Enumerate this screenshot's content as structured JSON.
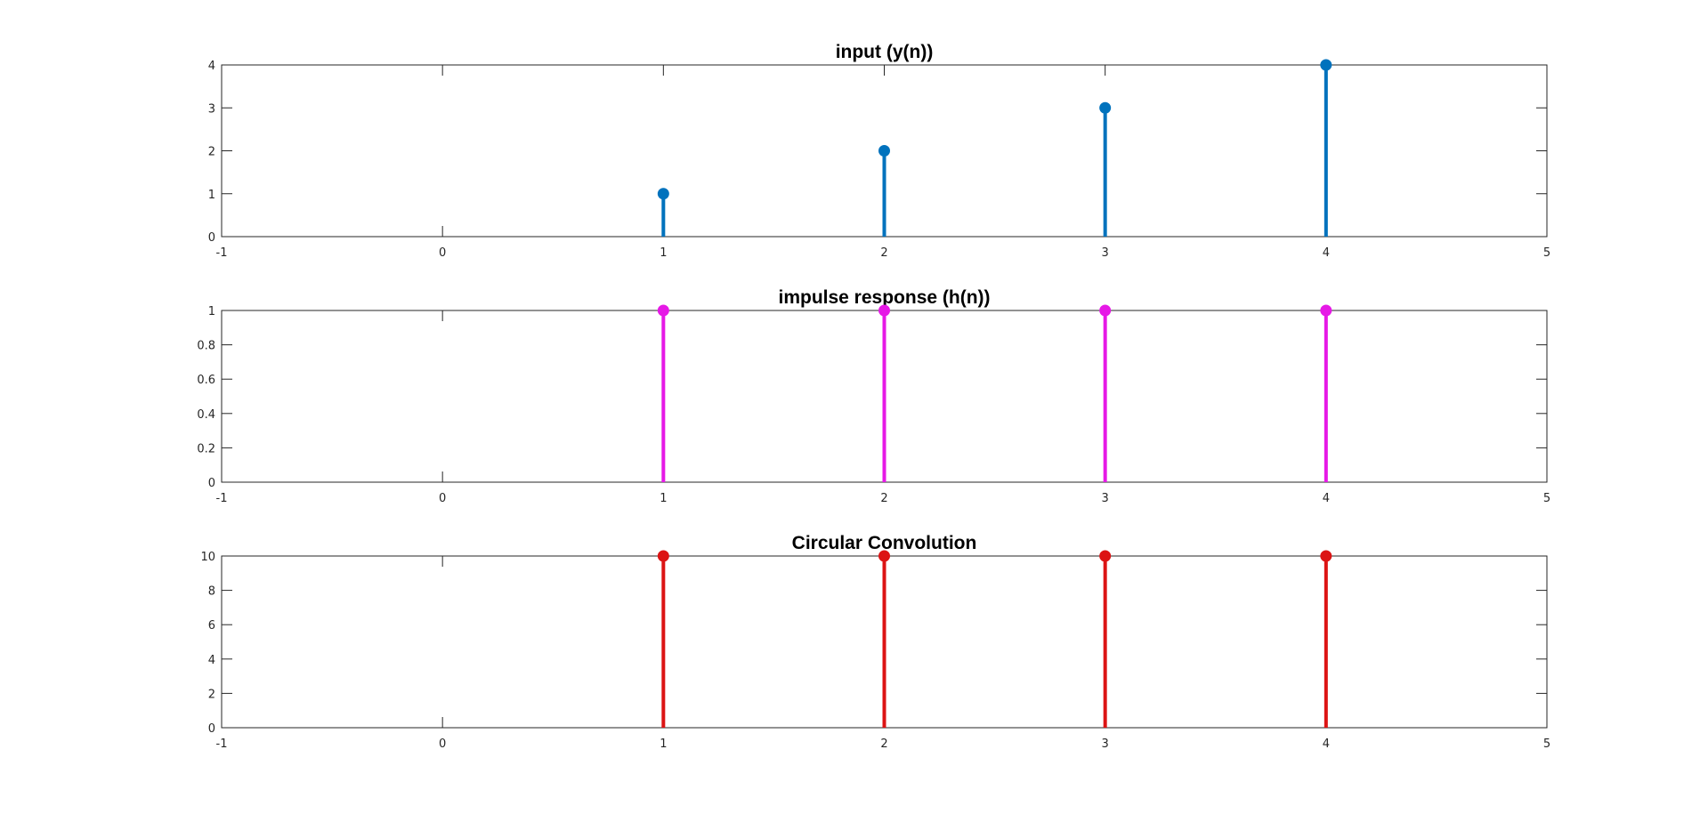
{
  "chart_data": [
    {
      "type": "stem",
      "title": "input (y(n))",
      "color": "#0072bd",
      "x": [
        1,
        2,
        3,
        4
      ],
      "values": [
        1,
        2,
        3,
        4
      ],
      "xlim": [
        -1,
        5
      ],
      "ylim": [
        0,
        4
      ],
      "xticks": [
        "-1",
        "0",
        "1",
        "2",
        "3",
        "4",
        "5"
      ],
      "yticks": [
        "0",
        "1",
        "2",
        "3",
        "4"
      ],
      "grid": false
    },
    {
      "type": "stem",
      "title": "impulse response (h(n))",
      "color": "#e619e6",
      "x": [
        1,
        2,
        3,
        4
      ],
      "values": [
        1,
        1,
        1,
        1
      ],
      "xlim": [
        -1,
        5
      ],
      "ylim": [
        0,
        1
      ],
      "xticks": [
        "-1",
        "0",
        "1",
        "2",
        "3",
        "4",
        "5"
      ],
      "yticks": [
        "0",
        "0.2",
        "0.4",
        "0.6",
        "0.8",
        "1"
      ],
      "grid": false
    },
    {
      "type": "stem",
      "title": "Circular Convolution",
      "color": "#dc1414",
      "x": [
        1,
        2,
        3,
        4
      ],
      "values": [
        10,
        10,
        10,
        10
      ],
      "xlim": [
        -1,
        5
      ],
      "ylim": [
        0,
        10
      ],
      "xticks": [
        "-1",
        "0",
        "1",
        "2",
        "3",
        "4",
        "5"
      ],
      "yticks": [
        "0",
        "2",
        "4",
        "6",
        "8",
        "10"
      ],
      "grid": false
    }
  ]
}
